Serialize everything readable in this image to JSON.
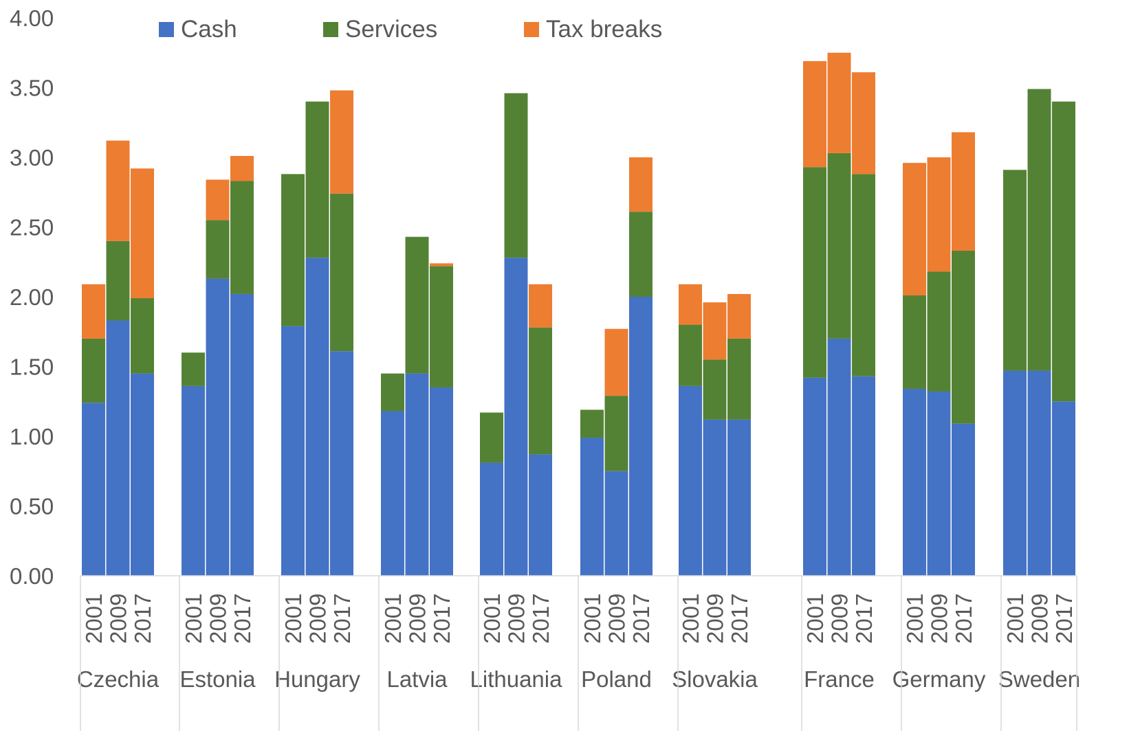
{
  "chart_data": {
    "type": "bar",
    "stacked": true,
    "title": "",
    "xlabel": "",
    "ylabel": "",
    "ylim": [
      0,
      4
    ],
    "yticks": [
      "0.00",
      "0.50",
      "1.00",
      "1.50",
      "2.00",
      "2.50",
      "3.00",
      "3.50",
      "4.00"
    ],
    "grid": false,
    "legend": {
      "position": "top",
      "entries": [
        "Cash",
        "Services",
        "Tax breaks"
      ]
    },
    "series": [
      {
        "name": "Cash",
        "color": "#4472C4"
      },
      {
        "name": "Services",
        "color": "#548235"
      },
      {
        "name": "Tax breaks",
        "color": "#ED7D31"
      }
    ],
    "groups": [
      {
        "country": "Czechia",
        "bars": [
          {
            "year": "2001",
            "values": [
              1.24,
              0.46,
              0.39
            ]
          },
          {
            "year": "2009",
            "values": [
              1.83,
              0.57,
              0.72
            ]
          },
          {
            "year": "2017",
            "values": [
              1.45,
              0.54,
              0.93
            ]
          }
        ]
      },
      {
        "country": "Estonia",
        "bars": [
          {
            "year": "2001",
            "values": [
              1.36,
              0.24,
              0.0
            ]
          },
          {
            "year": "2009",
            "values": [
              2.13,
              0.42,
              0.29
            ]
          },
          {
            "year": "2017",
            "values": [
              2.02,
              0.81,
              0.18
            ]
          }
        ]
      },
      {
        "country": "Hungary",
        "bars": [
          {
            "year": "2001",
            "values": [
              1.79,
              1.09,
              0.0
            ]
          },
          {
            "year": "2009",
            "values": [
              2.28,
              1.12,
              0.0
            ]
          },
          {
            "year": "2017",
            "values": [
              1.61,
              1.13,
              0.74
            ]
          }
        ]
      },
      {
        "country": "Latvia",
        "bars": [
          {
            "year": "2001",
            "values": [
              1.18,
              0.27,
              0.0
            ]
          },
          {
            "year": "2009",
            "values": [
              1.45,
              0.98,
              0.0
            ]
          },
          {
            "year": "2017",
            "values": [
              1.35,
              0.87,
              0.02
            ]
          }
        ]
      },
      {
        "country": "Lithuania",
        "bars": [
          {
            "year": "2001",
            "values": [
              0.81,
              0.36,
              0.0
            ]
          },
          {
            "year": "2009",
            "values": [
              2.28,
              1.18,
              0.0
            ]
          },
          {
            "year": "2017",
            "values": [
              0.87,
              0.91,
              0.31
            ]
          }
        ]
      },
      {
        "country": "Poland",
        "bars": [
          {
            "year": "2001",
            "values": [
              0.99,
              0.2,
              0.0
            ]
          },
          {
            "year": "2009",
            "values": [
              0.75,
              0.54,
              0.48
            ]
          },
          {
            "year": "2017",
            "values": [
              2.0,
              0.61,
              0.39
            ]
          }
        ]
      },
      {
        "country": "Slovakia",
        "bars": [
          {
            "year": "2001",
            "values": [
              1.36,
              0.44,
              0.29
            ]
          },
          {
            "year": "2009",
            "values": [
              1.12,
              0.43,
              0.41
            ]
          },
          {
            "year": "2017",
            "values": [
              1.12,
              0.58,
              0.32
            ]
          }
        ]
      },
      {
        "country": "France",
        "bars": [
          {
            "year": "2001",
            "values": [
              1.42,
              1.51,
              0.76
            ]
          },
          {
            "year": "2009",
            "values": [
              1.7,
              1.33,
              0.72
            ]
          },
          {
            "year": "2017",
            "values": [
              1.43,
              1.45,
              0.73
            ]
          }
        ]
      },
      {
        "country": "Germany",
        "bars": [
          {
            "year": "2001",
            "values": [
              1.34,
              0.67,
              0.95
            ]
          },
          {
            "year": "2009",
            "values": [
              1.32,
              0.86,
              0.82
            ]
          },
          {
            "year": "2017",
            "values": [
              1.09,
              1.24,
              0.85
            ]
          }
        ]
      },
      {
        "country": "Sweden",
        "bars": [
          {
            "year": "2001",
            "values": [
              1.47,
              1.44,
              0.0
            ]
          },
          {
            "year": "2009",
            "values": [
              1.47,
              2.02,
              0.0
            ]
          },
          {
            "year": "2017",
            "values": [
              1.25,
              2.15,
              0.0
            ]
          }
        ]
      }
    ]
  }
}
